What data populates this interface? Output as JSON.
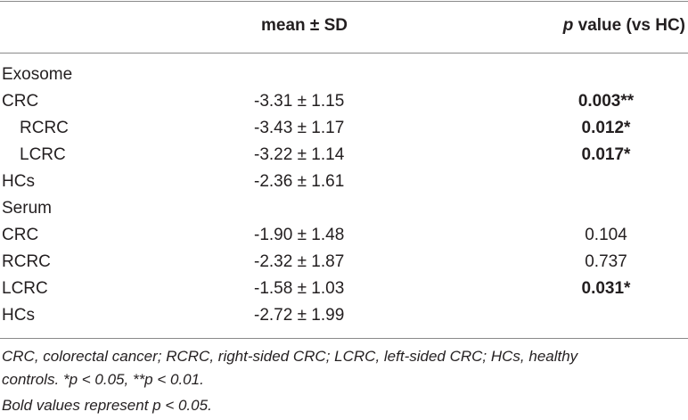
{
  "header": {
    "mean_label": "mean ± SD",
    "p_italic": "p",
    "p_rest": " value (vs HC)"
  },
  "rows": [
    {
      "label": "Exosome",
      "mean": "",
      "p": "",
      "bold": false,
      "indent": false
    },
    {
      "label": "CRC",
      "mean": "-3.31 ± 1.15",
      "p": "0.003**",
      "bold": true,
      "indent": false
    },
    {
      "label": "RCRC",
      "mean": "-3.43 ± 1.17",
      "p": "0.012*",
      "bold": true,
      "indent": true
    },
    {
      "label": "LCRC",
      "mean": "-3.22 ± 1.14",
      "p": "0.017*",
      "bold": true,
      "indent": true
    },
    {
      "label": "HCs",
      "mean": "-2.36 ± 1.61",
      "p": "",
      "bold": false,
      "indent": false
    },
    {
      "label": "Serum",
      "mean": "",
      "p": "",
      "bold": false,
      "indent": false
    },
    {
      "label": "CRC",
      "mean": "-1.90 ± 1.48",
      "p": "0.104",
      "bold": false,
      "indent": false
    },
    {
      "label": "RCRC",
      "mean": "-2.32 ± 1.87",
      "p": "0.737",
      "bold": false,
      "indent": false
    },
    {
      "label": "LCRC",
      "mean": "-1.58 ± 1.03",
      "p": "0.031*",
      "bold": true,
      "indent": false
    },
    {
      "label": "HCs",
      "mean": "-2.72 ± 1.99",
      "p": "",
      "bold": false,
      "indent": false
    }
  ],
  "footnotes": {
    "line1": "CRC, colorectal cancer; RCRC, right-sided CRC; LCRC, left-sided CRC; HCs, healthy",
    "line2": "controls. *p < 0.05, **p < 0.01.",
    "line3": "Bold values represent p < 0.05."
  }
}
